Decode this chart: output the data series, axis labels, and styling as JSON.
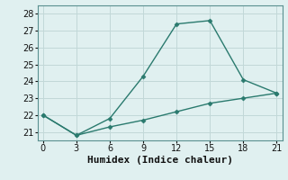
{
  "x": [
    0,
    3,
    6,
    9,
    12,
    15,
    18,
    21
  ],
  "y_upper": [
    22.0,
    20.8,
    21.8,
    24.3,
    27.4,
    27.6,
    24.1,
    23.3
  ],
  "y_lower": [
    22.0,
    20.8,
    21.3,
    21.7,
    22.2,
    22.7,
    23.0,
    23.3
  ],
  "line_color": "#2a7a6e",
  "bg_color": "#e0f0f0",
  "grid_color": "#c2d8d8",
  "xlabel": "Humidex (Indice chaleur)",
  "xlim": [
    -0.5,
    21.5
  ],
  "ylim": [
    20.5,
    28.5
  ],
  "yticks": [
    21,
    22,
    23,
    24,
    25,
    26,
    27,
    28
  ],
  "xticks": [
    0,
    3,
    6,
    9,
    12,
    15,
    18,
    21
  ],
  "marker": "D",
  "markersize": 2.5,
  "linewidth": 1.0,
  "xlabel_fontsize": 8,
  "tick_fontsize": 7
}
